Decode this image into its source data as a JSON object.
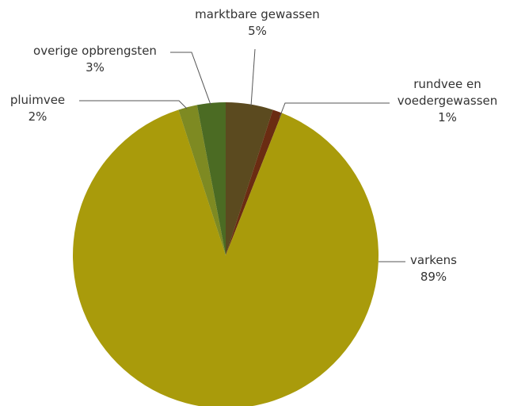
{
  "chart_data": {
    "type": "pie",
    "categories": [
      "marktbare gewassen",
      "rundvee en voedergewassen",
      "varkens",
      "pluimvee",
      "overige opbrengsten"
    ],
    "values": [
      5,
      1,
      89,
      2,
      3
    ],
    "value_labels": [
      "5%",
      "1%",
      "89%",
      "2%",
      "3%"
    ],
    "colors": [
      "#5b4a1f",
      "#6a2c12",
      "#a99b0b",
      "#7e8a22",
      "#4b6b23"
    ]
  }
}
